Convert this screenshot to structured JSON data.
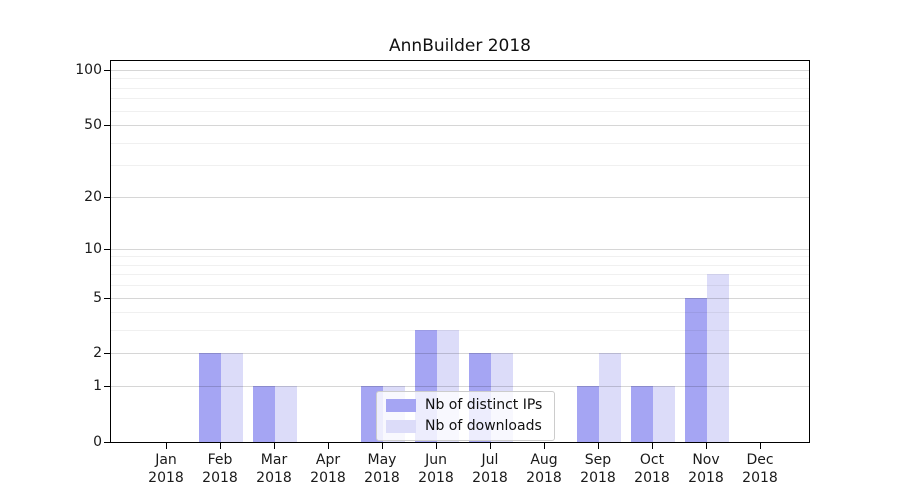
{
  "chart_data": {
    "type": "bar",
    "title": "AnnBuilder 2018",
    "categories": [
      "Jan",
      "Feb",
      "Mar",
      "Apr",
      "May",
      "Jun",
      "Jul",
      "Aug",
      "Sep",
      "Oct",
      "Nov",
      "Dec"
    ],
    "year_label": "2018",
    "series": [
      {
        "name": "Nb of distinct IPs",
        "color": "#a5a5f3",
        "values": [
          0,
          2,
          1,
          0,
          1,
          3,
          2,
          0,
          1,
          1,
          5,
          0
        ]
      },
      {
        "name": "Nb of downloads",
        "color": "#dcdcf9",
        "values": [
          0,
          2,
          1,
          0,
          1,
          3,
          2,
          0,
          2,
          1,
          7,
          0
        ]
      }
    ],
    "xlabel": "",
    "ylabel": "",
    "yscale": "log1p",
    "ylim": [
      0,
      112
    ],
    "yticks": [
      0,
      1,
      2,
      5,
      10,
      20,
      50,
      100
    ],
    "minor_gridlines": [
      3,
      4,
      6,
      7,
      8,
      9,
      30,
      40,
      60,
      70,
      80,
      90
    ],
    "grid": true,
    "legend_position": "lower center",
    "colors": {
      "axis": "#000000",
      "major_grid": "#00000029",
      "minor_grid": "#0000000F",
      "background": "#ffffff"
    }
  }
}
